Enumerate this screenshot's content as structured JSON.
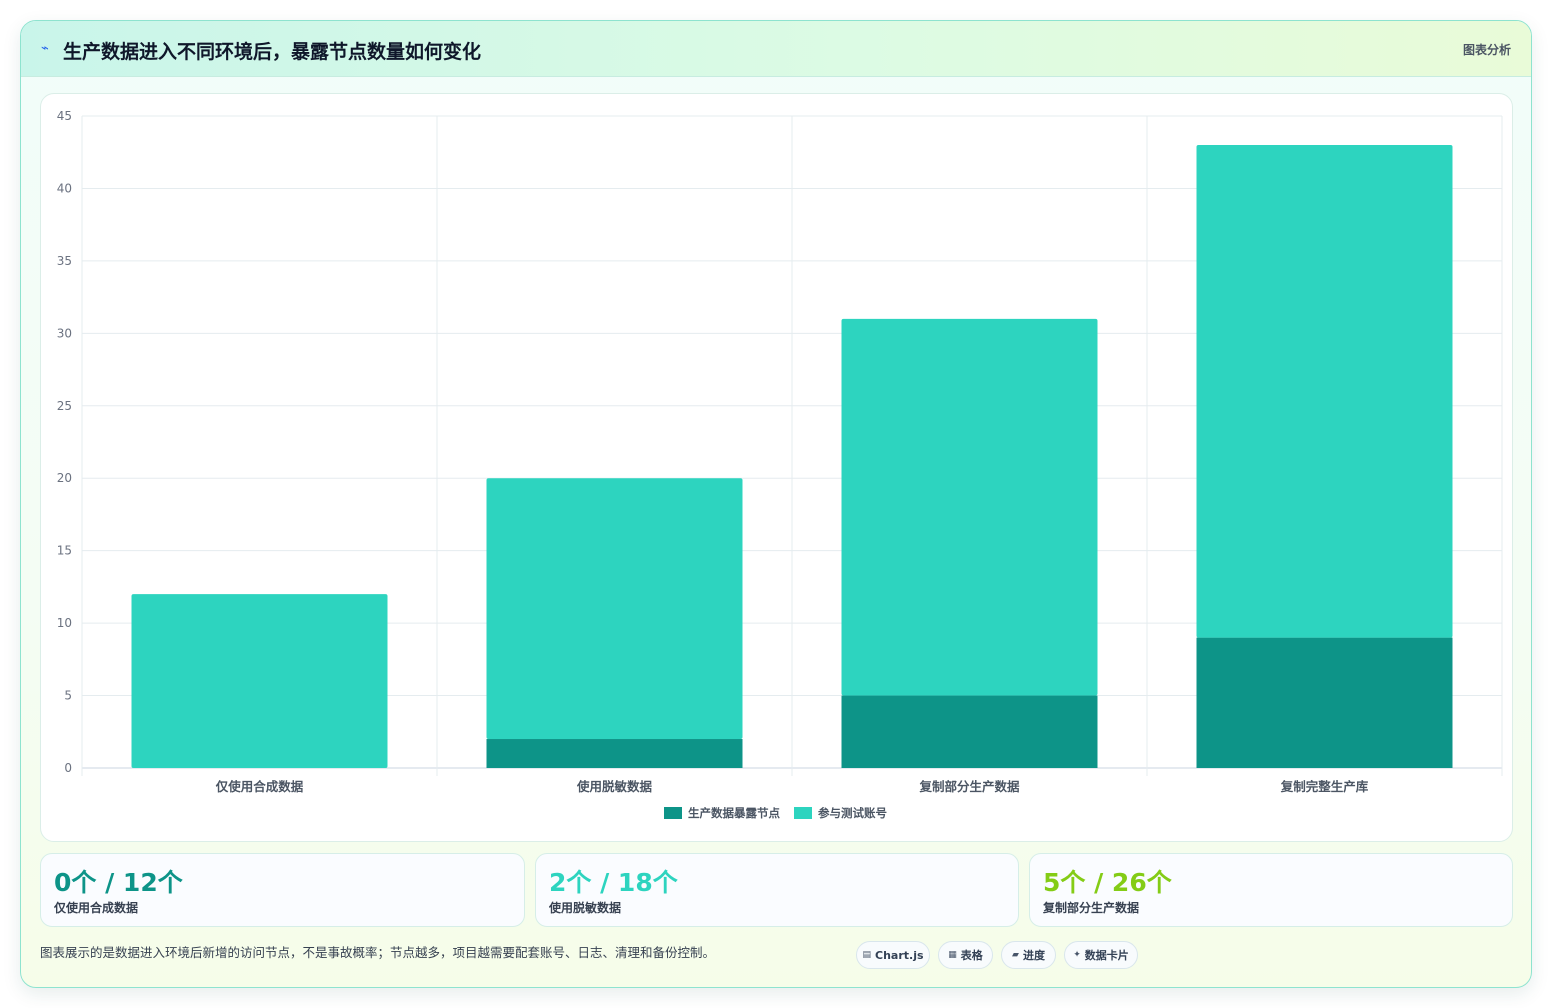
{
  "header": {
    "icon": "chart-icon",
    "title": "生产数据进入不同环境后，暴露节点数量如何变化",
    "tag": "图表分析"
  },
  "chart_data": {
    "type": "bar",
    "stacked": true,
    "categories": [
      "仅使用合成数据",
      "使用脱敏数据",
      "复制部分生产数据",
      "复制完整生产库"
    ],
    "series": [
      {
        "name": "生产数据暴露节点",
        "values": [
          0,
          2,
          5,
          9
        ],
        "color": "#0d9488"
      },
      {
        "name": "参与测试账号",
        "values": [
          12,
          18,
          26,
          34
        ],
        "color": "#2dd4bf"
      }
    ],
    "ylim": [
      0,
      45
    ],
    "yticks": [
      0,
      5,
      10,
      15,
      20,
      25,
      30,
      35,
      40,
      45
    ],
    "grid": true,
    "legend": "bottom"
  },
  "stats": [
    {
      "value": "0个 / 12个",
      "label": "仅使用合成数据",
      "color": "#0d9488"
    },
    {
      "value": "2个 / 18个",
      "label": "使用脱敏数据",
      "color": "#2dd4bf"
    },
    {
      "value": "5个 / 26个",
      "label": "复制部分生产数据",
      "color": "#84cc16"
    }
  ],
  "note": "图表展示的是数据进入环境后新增的访问节点，不是事故概率；节点越多，项目越需要配套账号、日志、清理和备份控制。",
  "pills": [
    {
      "icon": "▤",
      "label": "Chart.js"
    },
    {
      "icon": "▦",
      "label": "表格"
    },
    {
      "icon": "▰",
      "label": "进度"
    },
    {
      "icon": "✦",
      "label": "数据卡片"
    }
  ]
}
